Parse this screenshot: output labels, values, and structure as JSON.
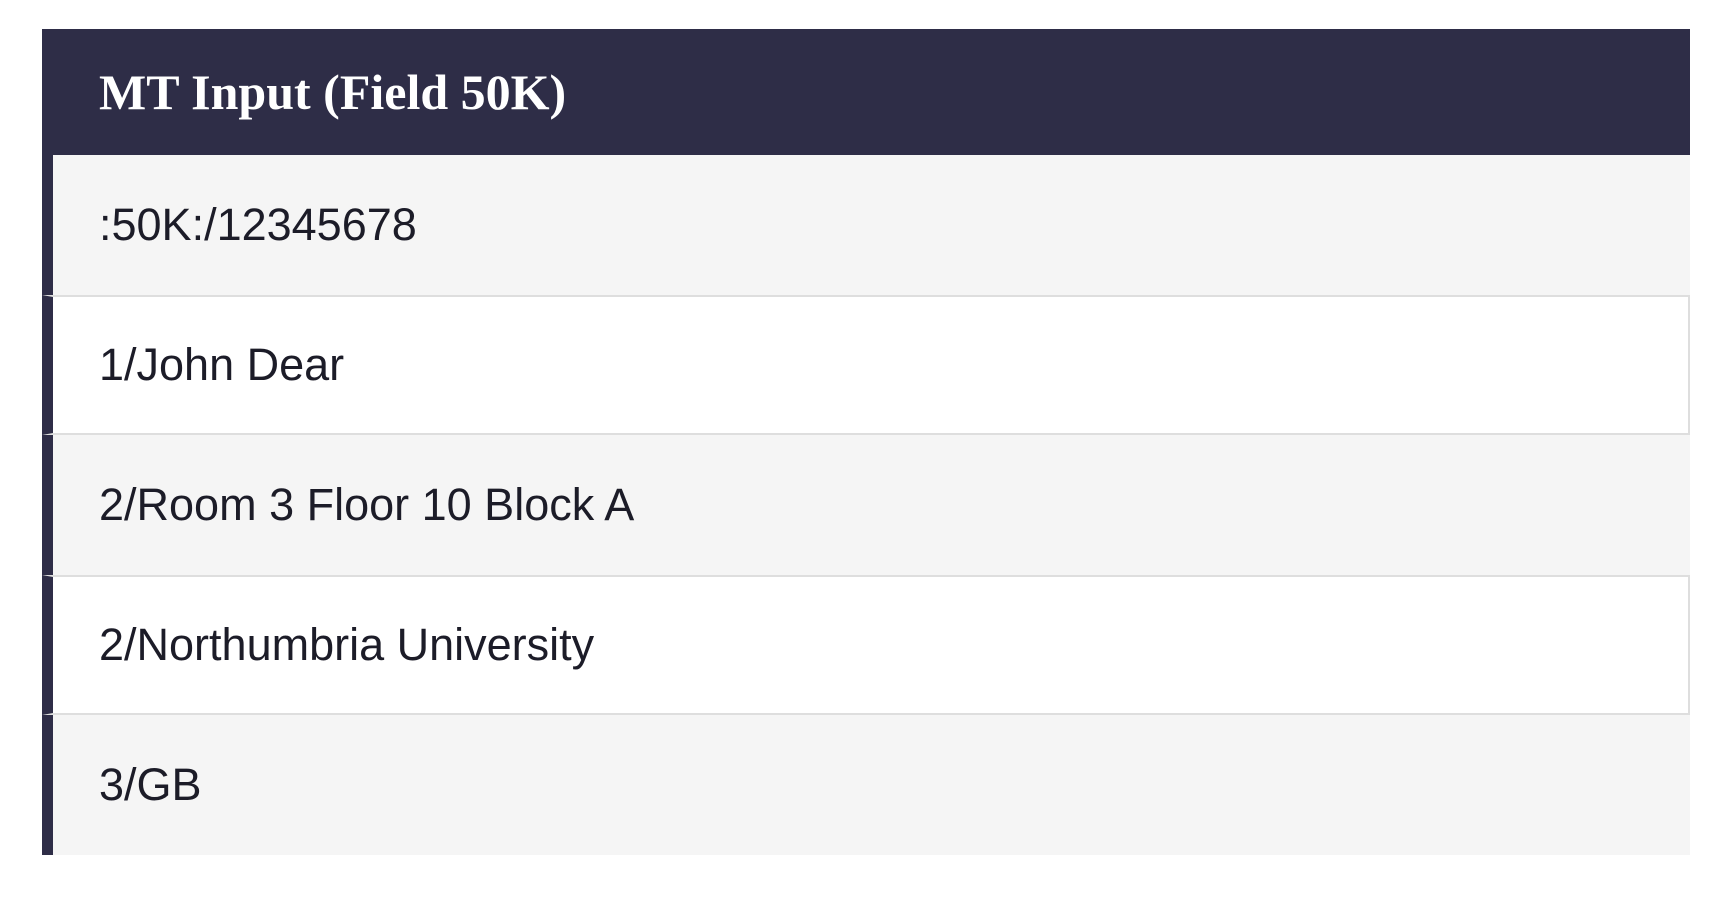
{
  "table": {
    "title": "MT Input (Field 50K)",
    "rows": [
      ":50K:/12345678",
      "1/John Dear",
      "2/Room 3 Floor 10 Block A",
      "2/Northumbria University",
      "3/GB"
    ]
  }
}
